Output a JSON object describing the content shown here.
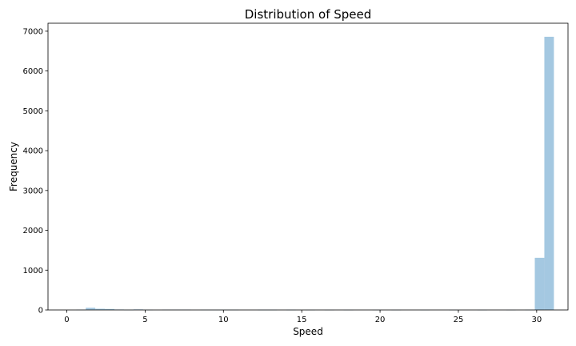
{
  "chart_data": {
    "type": "bar",
    "title": "Distribution of Speed",
    "xlabel": "Speed",
    "ylabel": "Frequency",
    "xlim": [
      -1.2,
      32.0
    ],
    "ylim": [
      0,
      7200
    ],
    "xticks": [
      0,
      5,
      10,
      15,
      20,
      25,
      30
    ],
    "yticks": [
      0,
      1000,
      2000,
      3000,
      4000,
      5000,
      6000,
      7000
    ],
    "bin_width": 0.61,
    "grid": false,
    "bar_color": "#a4c8e1",
    "bins": [
      {
        "x": 0.6,
        "value": 8
      },
      {
        "x": 1.21,
        "value": 55
      },
      {
        "x": 1.82,
        "value": 30
      },
      {
        "x": 2.43,
        "value": 25
      },
      {
        "x": 3.04,
        "value": 12
      },
      {
        "x": 3.65,
        "value": 6
      },
      {
        "x": 4.26,
        "value": 14
      },
      {
        "x": 4.87,
        "value": 6
      },
      {
        "x": 6.09,
        "value": 8
      },
      {
        "x": 6.7,
        "value": 8
      },
      {
        "x": 7.31,
        "value": 8
      },
      {
        "x": 8.53,
        "value": 6
      },
      {
        "x": 9.14,
        "value": 6
      },
      {
        "x": 9.75,
        "value": 6
      },
      {
        "x": 10.36,
        "value": 6
      },
      {
        "x": 12.19,
        "value": 5
      },
      {
        "x": 12.8,
        "value": 5
      },
      {
        "x": 14.02,
        "value": 5
      },
      {
        "x": 15.24,
        "value": 4
      },
      {
        "x": 16.46,
        "value": 4
      },
      {
        "x": 17.68,
        "value": 4
      },
      {
        "x": 19.51,
        "value": 4
      },
      {
        "x": 20.73,
        "value": 4
      },
      {
        "x": 22.56,
        "value": 4
      },
      {
        "x": 24.39,
        "value": 4
      },
      {
        "x": 26.22,
        "value": 4
      },
      {
        "x": 28.05,
        "value": 4
      },
      {
        "x": 29.27,
        "value": 6
      },
      {
        "x": 29.88,
        "value": 1310
      },
      {
        "x": 30.49,
        "value": 6860
      }
    ]
  }
}
